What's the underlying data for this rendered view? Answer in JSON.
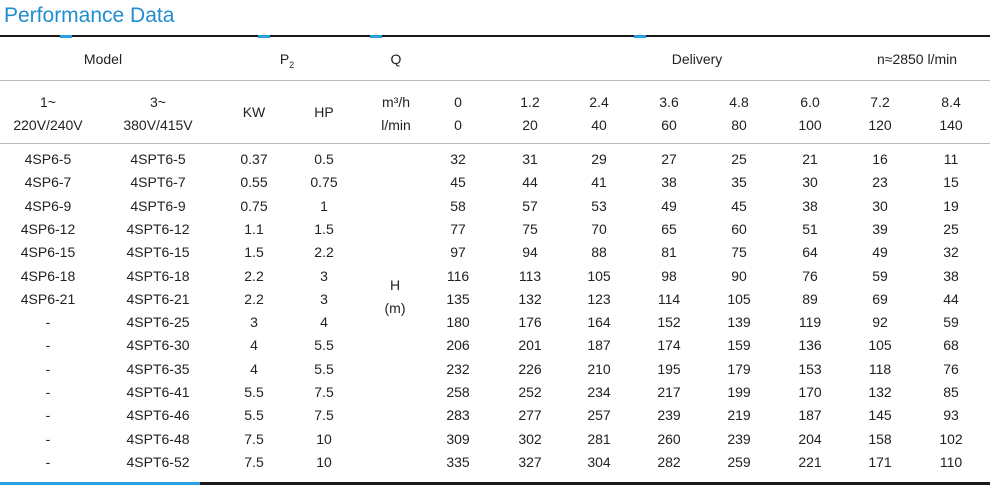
{
  "title": "Performance Data",
  "header1": {
    "model": "Model",
    "p2": "P",
    "p2_sub": "2",
    "q": "Q",
    "delivery": "Delivery",
    "speed": "n≈2850 l/min"
  },
  "header2": {
    "phase1_top": "1~",
    "phase1_bottom": "220V/240V",
    "phase3_top": "3~",
    "phase3_bottom": "380V/415V",
    "kw": "KW",
    "hp": "HP",
    "unit_top": "m³/h",
    "unit_bottom": "l/min",
    "flow_m3h": [
      "0",
      "1.2",
      "2.4",
      "3.6",
      "4.8",
      "6.0",
      "7.2",
      "8.4"
    ],
    "flow_lmin": [
      "0",
      "20",
      "40",
      "60",
      "80",
      "100",
      "120",
      "140"
    ]
  },
  "head_label": {
    "top": "H",
    "bottom": "(m)"
  },
  "rows": [
    [
      "4SP6-5",
      "4SPT6-5",
      "0.37",
      "0.5",
      "32",
      "31",
      "29",
      "27",
      "25",
      "21",
      "16",
      "11"
    ],
    [
      "4SP6-7",
      "4SPT6-7",
      "0.55",
      "0.75",
      "45",
      "44",
      "41",
      "38",
      "35",
      "30",
      "23",
      "15"
    ],
    [
      "4SP6-9",
      "4SPT6-9",
      "0.75",
      "1",
      "58",
      "57",
      "53",
      "49",
      "45",
      "38",
      "30",
      "19"
    ],
    [
      "4SP6-12",
      "4SPT6-12",
      "1.1",
      "1.5",
      "77",
      "75",
      "70",
      "65",
      "60",
      "51",
      "39",
      "25"
    ],
    [
      "4SP6-15",
      "4SPT6-15",
      "1.5",
      "2.2",
      "97",
      "94",
      "88",
      "81",
      "75",
      "64",
      "49",
      "32"
    ],
    [
      "4SP6-18",
      "4SPT6-18",
      "2.2",
      "3",
      "116",
      "113",
      "105",
      "98",
      "90",
      "76",
      "59",
      "38"
    ],
    [
      "4SP6-21",
      "4SPT6-21",
      "2.2",
      "3",
      "135",
      "132",
      "123",
      "114",
      "105",
      "89",
      "69",
      "44"
    ],
    [
      "-",
      "4SPT6-25",
      "3",
      "4",
      "180",
      "176",
      "164",
      "152",
      "139",
      "119",
      "92",
      "59"
    ],
    [
      "-",
      "4SPT6-30",
      "4",
      "5.5",
      "206",
      "201",
      "187",
      "174",
      "159",
      "136",
      "105",
      "68"
    ],
    [
      "-",
      "4SPT6-35",
      "4",
      "5.5",
      "232",
      "226",
      "210",
      "195",
      "179",
      "153",
      "118",
      "76"
    ],
    [
      "-",
      "4SPT6-41",
      "5.5",
      "7.5",
      "258",
      "252",
      "234",
      "217",
      "199",
      "170",
      "132",
      "85"
    ],
    [
      "-",
      "4SPT6-46",
      "5.5",
      "7.5",
      "283",
      "277",
      "257",
      "239",
      "219",
      "187",
      "145",
      "93"
    ],
    [
      "-",
      "4SPT6-48",
      "7.5",
      "10",
      "309",
      "302",
      "281",
      "260",
      "239",
      "204",
      "158",
      "102"
    ],
    [
      "-",
      "4SPT6-52",
      "7.5",
      "10",
      "335",
      "327",
      "304",
      "282",
      "259",
      "221",
      "171",
      "110"
    ]
  ]
}
